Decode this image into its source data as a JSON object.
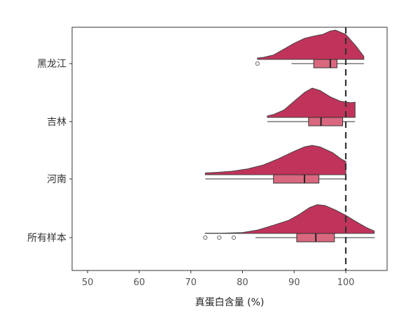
{
  "chart_data": {
    "type": "raincloud",
    "xlabel": "真蛋白含量 (%)",
    "xlim": [
      47,
      108
    ],
    "x_ticks": [
      50,
      60,
      70,
      80,
      90,
      100
    ],
    "reference_line": 100,
    "grid": false,
    "colors": {
      "density_fill": "#c0335a",
      "box_fill": "#d9687f",
      "line": "#333333"
    },
    "groups": [
      {
        "label": "黑龙江",
        "density": [
          [
            82.9,
            0.05
          ],
          [
            84,
            0.07
          ],
          [
            86,
            0.15
          ],
          [
            88,
            0.35
          ],
          [
            90,
            0.55
          ],
          [
            92,
            0.72
          ],
          [
            94,
            0.8
          ],
          [
            95.5,
            0.85
          ],
          [
            97,
            0.97
          ],
          [
            98,
            1.0
          ],
          [
            100,
            0.85
          ],
          [
            102,
            0.45
          ],
          [
            103.5,
            0.1
          ]
        ],
        "box": {
          "min": 89.5,
          "q1": 93.8,
          "median": 97.0,
          "q3": 98.3,
          "max": 103.5
        },
        "outliers": [
          82.9
        ]
      },
      {
        "label": "吉林",
        "density": [
          [
            84.8,
            0.05
          ],
          [
            86,
            0.1
          ],
          [
            88,
            0.25
          ],
          [
            90,
            0.55
          ],
          [
            92,
            0.85
          ],
          [
            93.5,
            1.0
          ],
          [
            95,
            0.92
          ],
          [
            97,
            0.7
          ],
          [
            99,
            0.55
          ],
          [
            101,
            0.5
          ],
          [
            101.8,
            0.52
          ]
        ],
        "box": {
          "min": 84.8,
          "q1": 92.8,
          "median": 95.2,
          "q3": 99.4,
          "max": 101.8
        },
        "outliers": []
      },
      {
        "label": "河南",
        "density": [
          [
            72.8,
            0.06
          ],
          [
            75,
            0.08
          ],
          [
            78,
            0.12
          ],
          [
            81,
            0.2
          ],
          [
            84,
            0.33
          ],
          [
            87,
            0.55
          ],
          [
            90,
            0.8
          ],
          [
            92,
            0.95
          ],
          [
            93.5,
            1.0
          ],
          [
            95,
            0.95
          ],
          [
            97.5,
            0.75
          ],
          [
            99,
            0.55
          ],
          [
            100,
            0.45
          ]
        ],
        "box": {
          "min": 72.8,
          "q1": 86.0,
          "median": 92.0,
          "q3": 94.8,
          "max": 100.0
        },
        "outliers": []
      },
      {
        "label": "所有样本",
        "density": [
          [
            72.8,
            0.01
          ],
          [
            76,
            0.01
          ],
          [
            80,
            0.03
          ],
          [
            83,
            0.12
          ],
          [
            86,
            0.28
          ],
          [
            89,
            0.45
          ],
          [
            91,
            0.65
          ],
          [
            93,
            0.88
          ],
          [
            94.5,
            0.98
          ],
          [
            96,
            0.95
          ],
          [
            98,
            0.8
          ],
          [
            100,
            0.62
          ],
          [
            102,
            0.4
          ],
          [
            104,
            0.2
          ],
          [
            105.5,
            0.08
          ]
        ],
        "box": {
          "min": 82.5,
          "q1": 90.5,
          "median": 94.2,
          "q3": 97.8,
          "max": 105.6
        },
        "outliers": [
          72.8,
          75.5,
          78.3
        ]
      }
    ]
  }
}
